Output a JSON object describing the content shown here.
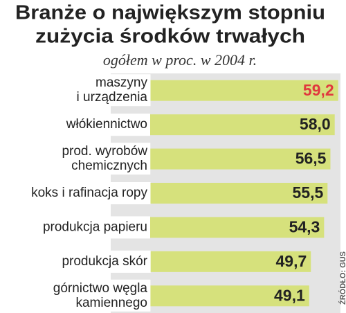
{
  "chart_data": {
    "type": "barh",
    "title": [
      "Branże o największym stopniu",
      "zużycia środków trwałych"
    ],
    "subtitle": "ogółem w proc. w 2004 r.",
    "source": "ŹRÓDŁO: GUS",
    "categories": [
      "maszyny\ni urządzenia",
      "włókiennictwo",
      "prod. wyrobów\nchemicznych",
      "koks i rafinacja ropy",
      "produkcja papieru",
      "produkcja skór",
      "górnictwo węgla\nkamiennego"
    ],
    "values": [
      59.2,
      58.0,
      56.5,
      55.5,
      54.3,
      49.7,
      49.1
    ],
    "value_labels": [
      "59,2",
      "58,0",
      "56,5",
      "55,5",
      "54,3",
      "49,7",
      "49,1"
    ],
    "color": "#d6e17c",
    "highlight_color": "#e0393e",
    "xlim": [
      -20,
      60
    ]
  }
}
